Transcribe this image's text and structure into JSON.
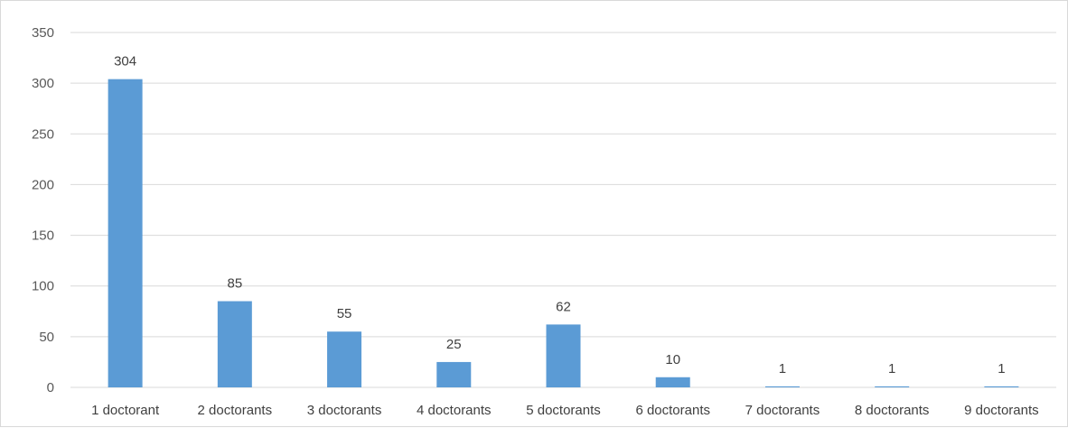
{
  "chart_data": {
    "type": "bar",
    "categories": [
      "1 doctorant",
      "2 doctorants",
      "3 doctorants",
      "4 doctorants",
      "5 doctorants",
      "6 doctorants",
      "7 doctorants",
      "8 doctorants",
      "9 doctorants"
    ],
    "values": [
      304,
      85,
      55,
      25,
      62,
      10,
      1,
      1,
      1
    ],
    "data_labels": [
      "304",
      "85",
      "55",
      "25",
      "62",
      "10",
      "1",
      "1",
      "1"
    ],
    "title": "",
    "xlabel": "",
    "ylabel": "",
    "ylim": [
      0,
      350
    ],
    "yticks": [
      0,
      50,
      100,
      150,
      200,
      250,
      300,
      350
    ],
    "ytick_labels": [
      "0",
      "50",
      "100",
      "150",
      "200",
      "250",
      "300",
      "350"
    ],
    "grid": true,
    "legend": "none",
    "bar_color": "#5b9bd5",
    "grid_color": "#d9d9d9"
  }
}
